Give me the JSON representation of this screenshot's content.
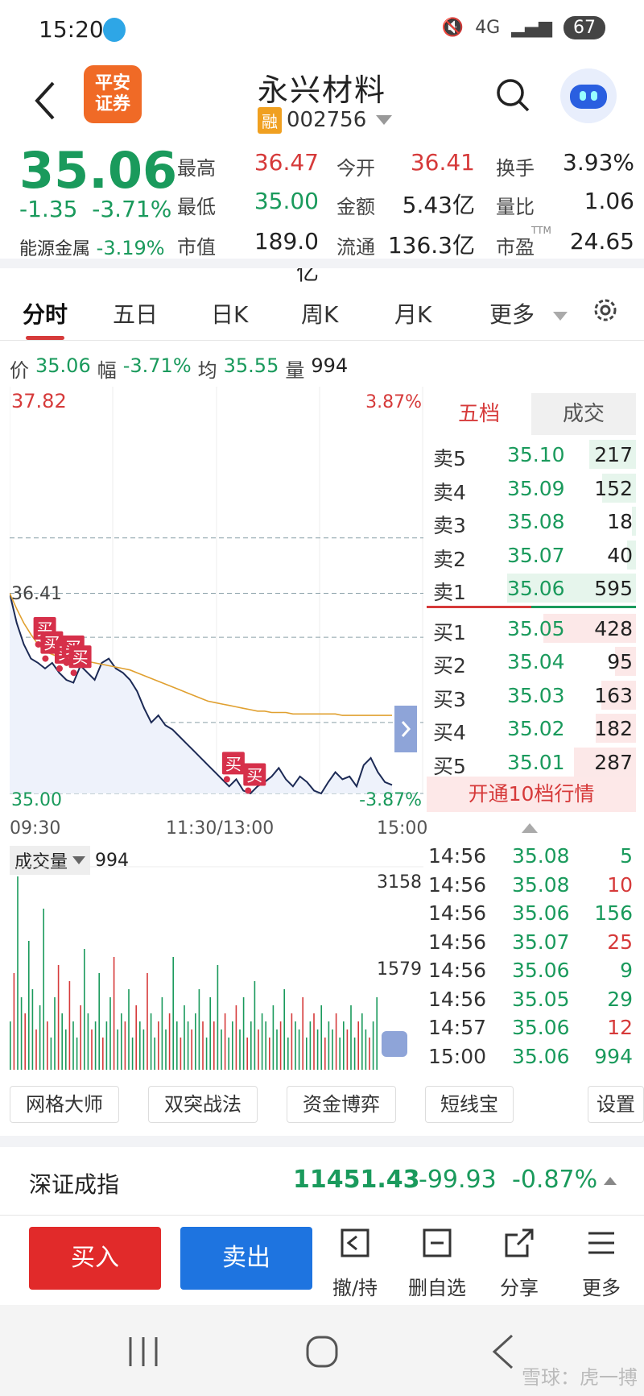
{
  "status_bar": {
    "time": "15:20",
    "network": "4G",
    "battery": "67"
  },
  "header": {
    "broker_logo": "平安\n证券",
    "broker_logo_line1": "平安",
    "broker_logo_line2": "证券",
    "title": "永兴材料",
    "margin_tag": "融",
    "code": "002756"
  },
  "quote": {
    "price": "35.06",
    "change": "-1.35",
    "change_pct": "-3.71%",
    "sector_name": "能源金属",
    "sector_pct": "-3.19%",
    "fields": [
      {
        "label": "最高",
        "value": "36.47"
      },
      {
        "label": "今开",
        "value": "36.41"
      },
      {
        "label": "换手",
        "value": "3.93%"
      },
      {
        "label": "最低",
        "value": "35.00"
      },
      {
        "label": "金额",
        "value": "5.43亿"
      },
      {
        "label": "量比",
        "value": "1.06"
      },
      {
        "label": "市值",
        "value": "189.0亿"
      },
      {
        "label": "流通",
        "value": "136.3亿"
      },
      {
        "label": "市盈",
        "value": "24.65"
      }
    ],
    "pe_tag": "TTM"
  },
  "tabs": [
    "分时",
    "五日",
    "日K",
    "周K",
    "月K",
    "更多"
  ],
  "info_line": {
    "price_label": "价",
    "price": "35.06",
    "pct_label": "幅",
    "pct": "-3.71%",
    "avg_label": "均",
    "avg": "35.55",
    "vol_label": "量",
    "vol": "994"
  },
  "chart_data": {
    "type": "line",
    "title": "",
    "y_top_price": "37.82",
    "y_top_pct": "3.87%",
    "y_open": "36.41",
    "y_bottom_price": "35.00",
    "y_bottom_pct": "-3.87%",
    "ylim": [
      35.0,
      37.82
    ],
    "x_ticks": [
      "09:30",
      "11:30/13:00",
      "15:00"
    ],
    "series": [
      {
        "values": [
          36.41,
          36.2,
          36.05,
          35.95,
          35.92,
          35.88,
          35.92,
          35.85,
          35.8,
          35.78,
          35.9,
          35.85,
          35.8,
          35.92,
          35.95,
          35.88,
          35.85,
          35.8,
          35.72,
          35.6,
          35.5,
          35.55,
          35.48,
          35.45,
          35.4,
          35.35,
          35.3,
          35.25,
          35.2,
          35.15,
          35.1,
          35.05,
          35.1,
          35.02,
          35.0,
          35.05,
          35.08,
          35.12,
          35.18,
          35.1,
          35.05,
          35.12,
          35.08,
          35.02,
          35.0,
          35.08,
          35.15,
          35.1,
          35.12,
          35.05,
          35.2,
          35.25,
          35.15,
          35.08,
          35.06
        ]
      },
      {
        "values": [
          36.41,
          36.3,
          36.2,
          36.12,
          36.05,
          36.0,
          35.98,
          35.96,
          35.95,
          35.94,
          35.94,
          35.93,
          35.92,
          35.91,
          35.9,
          35.89,
          35.88,
          35.87,
          35.85,
          35.83,
          35.81,
          35.79,
          35.77,
          35.75,
          35.73,
          35.71,
          35.69,
          35.67,
          35.65,
          35.64,
          35.63,
          35.62,
          35.61,
          35.6,
          35.59,
          35.58,
          35.58,
          35.57,
          35.57,
          35.57,
          35.56,
          35.56,
          35.56,
          35.56,
          35.56,
          35.56,
          35.56,
          35.55,
          35.55,
          35.55,
          35.55,
          35.55,
          35.55,
          35.55,
          35.55
        ]
      }
    ],
    "buy_marker_label": "买",
    "buy_markers": 7
  },
  "order_book": {
    "tabs": [
      "五档",
      "成交"
    ],
    "asks": [
      {
        "label": "卖5",
        "price": "35.10",
        "vol": "217",
        "ratio": 0.36
      },
      {
        "label": "卖4",
        "price": "35.09",
        "vol": "152",
        "ratio": 0.26
      },
      {
        "label": "卖3",
        "price": "35.08",
        "vol": "18",
        "ratio": 0.03
      },
      {
        "label": "卖2",
        "price": "35.07",
        "vol": "40",
        "ratio": 0.07
      },
      {
        "label": "卖1",
        "price": "35.06",
        "vol": "595",
        "ratio": 1.0
      }
    ],
    "bids": [
      {
        "label": "买1",
        "price": "35.05",
        "vol": "428",
        "ratio": 0.72
      },
      {
        "label": "买2",
        "price": "35.04",
        "vol": "95",
        "ratio": 0.16
      },
      {
        "label": "买3",
        "price": "35.03",
        "vol": "163",
        "ratio": 0.27
      },
      {
        "label": "买4",
        "price": "35.02",
        "vol": "182",
        "ratio": 0.31
      },
      {
        "label": "买5",
        "price": "35.01",
        "vol": "287",
        "ratio": 0.48
      }
    ],
    "open10_label": "开通10档行情"
  },
  "trades": [
    {
      "time": "14:56",
      "price": "35.08",
      "vol": "5",
      "color": "#1a9a5c"
    },
    {
      "time": "14:56",
      "price": "35.08",
      "vol": "10",
      "color": "#d63a3a"
    },
    {
      "time": "14:56",
      "price": "35.06",
      "vol": "156",
      "color": "#1a9a5c"
    },
    {
      "time": "14:56",
      "price": "35.07",
      "vol": "25",
      "color": "#d63a3a"
    },
    {
      "time": "14:56",
      "price": "35.06",
      "vol": "9",
      "color": "#1a9a5c"
    },
    {
      "time": "14:56",
      "price": "35.05",
      "vol": "29",
      "color": "#1a9a5c"
    },
    {
      "time": "14:57",
      "price": "35.06",
      "vol": "12",
      "color": "#d63a3a"
    },
    {
      "time": "15:00",
      "price": "35.06",
      "vol": "994",
      "color": "#1a9a5c"
    }
  ],
  "volume_chart": {
    "selector": "成交量",
    "current": "994",
    "max_label": "3158",
    "mid_label": "1579"
  },
  "tools": [
    "网格大师",
    "双突战法",
    "资金博弈",
    "短线宝",
    "设置"
  ],
  "index_bar": {
    "name": "深证成指",
    "value": "11451.43",
    "change": "-99.93",
    "pct": "-0.87%"
  },
  "actions": {
    "buy": "买入",
    "sell": "卖出",
    "items": [
      "撤/持",
      "删自选",
      "分享",
      "更多"
    ]
  },
  "watermark": "雪球：虎一搏",
  "colors": {
    "up": "#d63a3a",
    "down": "#1a9a5c",
    "avg_line": "#e0a030",
    "price_line": "#1c2a55"
  }
}
